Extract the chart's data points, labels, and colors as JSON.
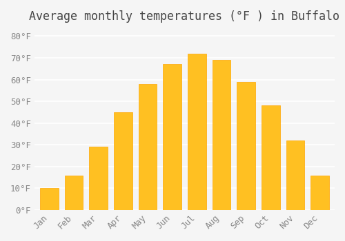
{
  "months": [
    "Jan",
    "Feb",
    "Mar",
    "Apr",
    "May",
    "Jun",
    "Jul",
    "Aug",
    "Sep",
    "Oct",
    "Nov",
    "Dec"
  ],
  "temperatures": [
    10,
    16,
    29,
    45,
    58,
    67,
    72,
    69,
    59,
    48,
    32,
    16
  ],
  "bar_color": "#FFC022",
  "bar_edge_color": "#FFA500",
  "title": "Average monthly temperatures (°F ) in Buffalo",
  "ylim": [
    0,
    83
  ],
  "yticks": [
    0,
    10,
    20,
    30,
    40,
    50,
    60,
    70,
    80
  ],
  "ytick_labels": [
    "0°F",
    "10°F",
    "20°F",
    "30°F",
    "40°F",
    "50°F",
    "60°F",
    "70°F",
    "80°F"
  ],
  "background_color": "#f5f5f5",
  "grid_color": "#ffffff",
  "title_fontsize": 12,
  "tick_fontsize": 9,
  "font_family": "monospace"
}
